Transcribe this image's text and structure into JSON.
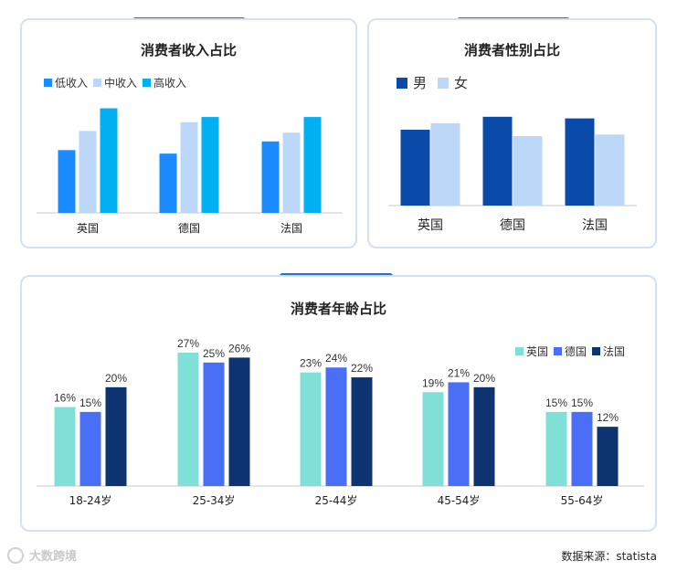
{
  "footer": {
    "logo_text": "大数跨境",
    "source": "数据来源：statista"
  },
  "chart_data": [
    {
      "type": "bar",
      "title": "消费者收入占比",
      "categories": [
        "英国",
        "德国",
        "法国"
      ],
      "series": [
        {
          "name": "低收入",
          "color": "#1a8cff",
          "values": [
            36,
            34,
            41
          ]
        },
        {
          "name": "中收入",
          "color": "#bcd7f7",
          "values": [
            47,
            52,
            46
          ]
        },
        {
          "name": "高收入",
          "color": "#00b0f0",
          "values": [
            60,
            55,
            55
          ]
        }
      ],
      "ylim": [
        0,
        65
      ],
      "legend_position": "top-left"
    },
    {
      "type": "bar",
      "title": "消费者性别占比",
      "categories": [
        "英国",
        "德国",
        "法国"
      ],
      "series": [
        {
          "name": "男",
          "color": "#0a4aa8",
          "values": [
            47,
            55,
            54
          ]
        },
        {
          "name": "女",
          "color": "#bcd7f7",
          "values": [
            51,
            43,
            44
          ]
        }
      ],
      "ylim": [
        0,
        60
      ],
      "legend_position": "top-left"
    },
    {
      "type": "bar",
      "title": "消费者年龄占比",
      "categories": [
        "18-24岁",
        "25-34岁",
        "25-44岁",
        "45-54岁",
        "55-64岁"
      ],
      "series": [
        {
          "name": "英国",
          "color": "#80e0d8",
          "values": [
            16,
            27,
            23,
            19,
            15
          ]
        },
        {
          "name": "德国",
          "color": "#4a6ef5",
          "values": [
            15,
            25,
            24,
            21,
            15
          ]
        },
        {
          "name": "法国",
          "color": "#0d3470",
          "values": [
            20,
            26,
            22,
            20,
            12
          ]
        }
      ],
      "value_suffix": "%",
      "ylim": [
        0,
        27
      ],
      "legend_position": "top-right"
    }
  ]
}
